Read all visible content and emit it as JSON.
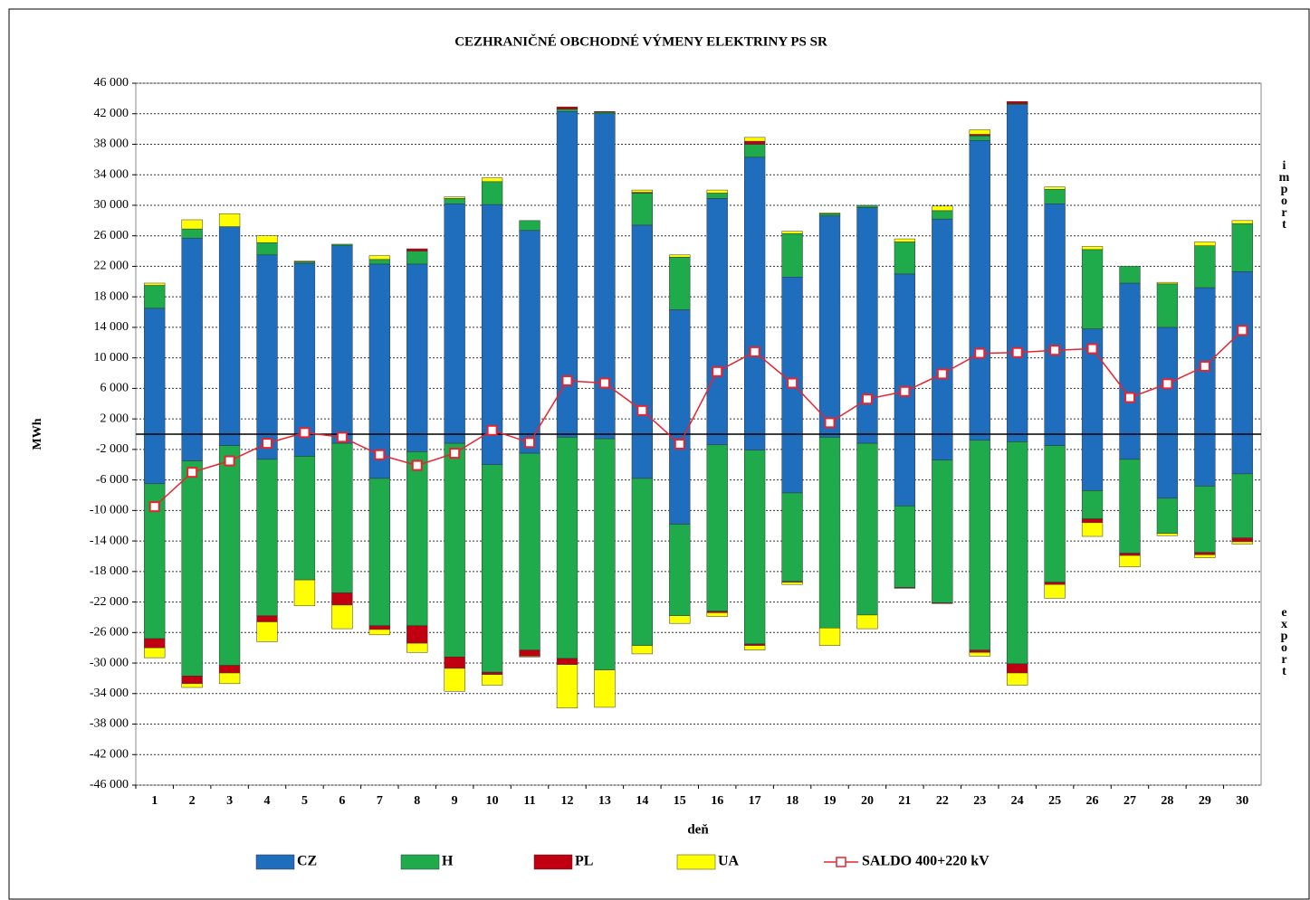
{
  "chart_data": {
    "type": "bar",
    "title": "CEZHRANIČNÉ OBCHODNÉ VÝMENY ELEKTRINY PS SR",
    "x_label": "deň",
    "y_label": "MWh",
    "annotations": {
      "import": "import",
      "export": "export"
    },
    "categories": [
      "1",
      "2",
      "3",
      "4",
      "5",
      "6",
      "7",
      "8",
      "9",
      "10",
      "11",
      "12",
      "13",
      "14",
      "15",
      "16",
      "17",
      "18",
      "19",
      "20",
      "21",
      "22",
      "23",
      "24",
      "25",
      "26",
      "27",
      "28",
      "29",
      "30"
    ],
    "ylim": [
      -46000,
      46000
    ],
    "yticks": [
      {
        "value": 46000,
        "label": "46 000"
      },
      {
        "value": 42000,
        "label": "42 000"
      },
      {
        "value": 38000,
        "label": "38 000"
      },
      {
        "value": 34000,
        "label": "34 000"
      },
      {
        "value": 30000,
        "label": "30 000"
      },
      {
        "value": 26000,
        "label": "26 000"
      },
      {
        "value": 22000,
        "label": "22 000"
      },
      {
        "value": 18000,
        "label": "18 000"
      },
      {
        "value": 14000,
        "label": "14 000"
      },
      {
        "value": 10000,
        "label": "10 000"
      },
      {
        "value": 6000,
        "label": "6 000"
      },
      {
        "value": 2000,
        "label": "2 000"
      },
      {
        "value": -2000,
        "label": "-2 000"
      },
      {
        "value": -6000,
        "label": "-6 000"
      },
      {
        "value": -10000,
        "label": "-10 000"
      },
      {
        "value": -14000,
        "label": "-14 000"
      },
      {
        "value": -18000,
        "label": "-18 000"
      },
      {
        "value": -22000,
        "label": "-22 000"
      },
      {
        "value": -26000,
        "label": "-26 000"
      },
      {
        "value": -30000,
        "label": "-30 000"
      },
      {
        "value": -34000,
        "label": "-34 000"
      },
      {
        "value": -38000,
        "label": "-38 000"
      },
      {
        "value": -42000,
        "label": "-42 000"
      },
      {
        "value": -46000,
        "label": "-46 000"
      }
    ],
    "grid": true,
    "series": [
      {
        "name": "CZ",
        "color": "#1f6ebe",
        "values": [
          16500,
          25700,
          27200,
          23500,
          22400,
          24700,
          22300,
          22300,
          30200,
          30100,
          26700,
          42300,
          42000,
          27400,
          16300,
          30900,
          36300,
          20600,
          28600,
          29700,
          21000,
          28200,
          38500,
          43200,
          30200,
          13800,
          19800,
          14000,
          19200,
          21300
        ],
        "export_values": [
          -6500,
          -3500,
          -1500,
          -3300,
          -2900,
          -1200,
          -5800,
          -2300,
          -1200,
          -4000,
          -2500,
          -400,
          -600,
          -5800,
          -11800,
          -1400,
          -2100,
          -7700,
          -400,
          -1200,
          -9400,
          -3400,
          -800,
          -1000,
          -1500,
          -7400,
          -3300,
          -8400,
          -6800,
          -5200
        ]
      },
      {
        "name": "H",
        "color": "#1faa4c",
        "values": [
          3000,
          1200,
          0,
          1600,
          200,
          200,
          600,
          1700,
          700,
          3000,
          1300,
          300,
          200,
          4200,
          6900,
          700,
          1700,
          5700,
          300,
          300,
          4200,
          1100,
          600,
          100,
          1900,
          10400,
          2200,
          5700,
          5500,
          6300
        ],
        "export_values": [
          -20300,
          -28200,
          -28800,
          -20500,
          -16200,
          -19600,
          -19300,
          -22800,
          -28000,
          -27200,
          -25800,
          -29000,
          -30300,
          -21900,
          -12000,
          -21800,
          -25400,
          -11600,
          -25000,
          -22500,
          -10700,
          -18700,
          -27500,
          -29100,
          -17900,
          -3700,
          -12300,
          -4600,
          -8700,
          -8400
        ]
      },
      {
        "name": "PL",
        "color": "#c00010",
        "values": [
          0,
          0,
          0,
          0,
          0,
          0,
          0,
          300,
          0,
          0,
          0,
          300,
          100,
          100,
          0,
          0,
          400,
          0,
          0,
          0,
          0,
          0,
          200,
          300,
          0,
          0,
          0,
          0,
          0,
          0
        ],
        "export_values": [
          -1200,
          -1000,
          -1000,
          -800,
          0,
          -1600,
          -500,
          -2300,
          -1500,
          -300,
          -800,
          -800,
          0,
          0,
          0,
          -200,
          -200,
          -100,
          0,
          0,
          -100,
          -100,
          -300,
          -1200,
          -300,
          -500,
          -300,
          0,
          -300,
          -500
        ]
      },
      {
        "name": "UA",
        "color": "#ffff00",
        "values": [
          300,
          1200,
          1700,
          900,
          100,
          0,
          500,
          0,
          200,
          500,
          0,
          0,
          0,
          300,
          300,
          400,
          500,
          300,
          100,
          0,
          400,
          600,
          600,
          0,
          300,
          400,
          0,
          200,
          500,
          400
        ],
        "export_values": [
          -1300,
          -500,
          -1400,
          -2600,
          -3400,
          -3100,
          -700,
          -1200,
          -3000,
          -1400,
          -100,
          -5700,
          -4900,
          -1100,
          -1000,
          -500,
          -600,
          -300,
          -2300,
          -1800,
          0,
          0,
          -500,
          -1600,
          -1800,
          -1800,
          -1500,
          -300,
          -400,
          -300
        ]
      },
      {
        "name": "SALDO 400+220 kV",
        "color": "#e8232f",
        "type": "line",
        "values": [
          -9500,
          -5000,
          -3500,
          -1200,
          200,
          -400,
          -2700,
          -4100,
          -2500,
          500,
          -1100,
          7000,
          6700,
          3100,
          -1300,
          8200,
          10800,
          6700,
          1500,
          4600,
          5600,
          7900,
          10600,
          10700,
          11000,
          11200,
          4800,
          6600,
          8900,
          13600
        ]
      }
    ]
  }
}
